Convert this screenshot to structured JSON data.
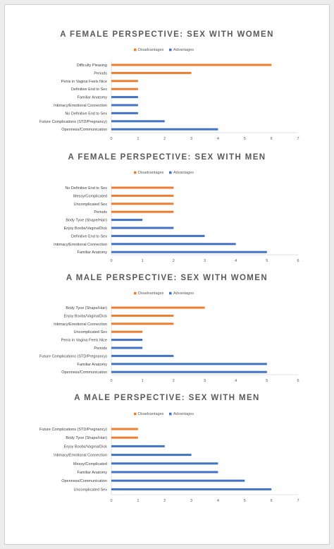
{
  "colors": {
    "disadvantages": "#ED7D31",
    "advantages": "#4472C4",
    "title": "#595959",
    "axis": "#d9d9d9"
  },
  "chart_data": [
    {
      "type": "bar",
      "orientation": "horizontal",
      "title": "A FEMALE PERSPECTIVE: SEX WITH WOMEN",
      "legend": [
        "Disadvantages",
        "Advantages"
      ],
      "legend_position": "top",
      "xlim": [
        0,
        7
      ],
      "ticks": [
        "0",
        "1",
        "2",
        "3",
        "4",
        "5",
        "6",
        "7"
      ],
      "bars": [
        {
          "label": "Difficulty Pleasing",
          "series": "Disadvantages",
          "value": 6
        },
        {
          "label": "Periods",
          "series": "Disadvantages",
          "value": 3
        },
        {
          "label": "Penis in Vagina Feels Nice",
          "series": "Disadvantages",
          "value": 1
        },
        {
          "label": "Definitive End to Sex",
          "series": "Disadvantages",
          "value": 1
        },
        {
          "label": "Familiar Anatomy",
          "series": "Advantages",
          "value": 1
        },
        {
          "label": "Intimacy/Emotional Connection",
          "series": "Advantages",
          "value": 1
        },
        {
          "label": "No Definitive End to Sex",
          "series": "Advantages",
          "value": 1
        },
        {
          "label": "Future Complications (STD/Pregnancy)",
          "series": "Advantages",
          "value": 2
        },
        {
          "label": "Openness/Communication",
          "series": "Advantages",
          "value": 4
        }
      ]
    },
    {
      "type": "bar",
      "orientation": "horizontal",
      "title": "A FEMALE PERSPECTIVE: SEX WITH MEN",
      "legend": [
        "Disadvantages",
        "Advantages"
      ],
      "legend_position": "top",
      "xlim": [
        0,
        6
      ],
      "ticks": [
        "0",
        "1",
        "2",
        "3",
        "4",
        "5",
        "6"
      ],
      "bars": [
        {
          "label": "No Definitive End to Sex",
          "series": "Disadvantages",
          "value": 2
        },
        {
          "label": "Messy/Complicated",
          "series": "Disadvantages",
          "value": 2
        },
        {
          "label": "Uncomplicated Sex",
          "series": "Disadvantages",
          "value": 2
        },
        {
          "label": "Periods",
          "series": "Disadvantages",
          "value": 2
        },
        {
          "label": "Body Tyoe (Shape/Hair)",
          "series": "Advantages",
          "value": 1
        },
        {
          "label": "Enjoy Boobs/Vagina/Dick",
          "series": "Advantages",
          "value": 2
        },
        {
          "label": "Definitive End to Sex",
          "series": "Advantages",
          "value": 3
        },
        {
          "label": "Intimacy/Emotional Connection",
          "series": "Advantages",
          "value": 4
        },
        {
          "label": "Familiar Anatomy",
          "series": "Advantages",
          "value": 5
        }
      ]
    },
    {
      "type": "bar",
      "orientation": "horizontal",
      "title": "A MALE PERSPECTIVE: SEX WITH WOMEN",
      "legend": [
        "Disadvantages",
        "Advantages"
      ],
      "legend_position": "top",
      "xlim": [
        0,
        6
      ],
      "ticks": [
        "0",
        "1",
        "2",
        "3",
        "4",
        "5",
        "6"
      ],
      "bars": [
        {
          "label": "Body Tyoe (Shape/Hair)",
          "series": "Disadvantages",
          "value": 3
        },
        {
          "label": "Enjoy Boobs/Vagina/Dick",
          "series": "Disadvantages",
          "value": 2
        },
        {
          "label": "Intimacy/Emotional Connection",
          "series": "Disadvantages",
          "value": 2
        },
        {
          "label": "Uncomplicated Sex",
          "series": "Disadvantages",
          "value": 1
        },
        {
          "label": "Penis in Vagina Feels Nice",
          "series": "Advantages",
          "value": 1
        },
        {
          "label": "Periods",
          "series": "Advantages",
          "value": 1
        },
        {
          "label": "Future Complications (STD/Pregnancy)",
          "series": "Advantages",
          "value": 2
        },
        {
          "label": "Familiar Anatomy",
          "series": "Advantages",
          "value": 5
        },
        {
          "label": "Openness/Communication",
          "series": "Advantages",
          "value": 5
        }
      ]
    },
    {
      "type": "bar",
      "orientation": "horizontal",
      "title": "A MALE PERSPECTIVE: SEX WITH MEN",
      "legend": [
        "Disadvantages",
        "Advantages"
      ],
      "legend_position": "top",
      "xlim": [
        0,
        7
      ],
      "ticks": [
        "0",
        "1",
        "2",
        "3",
        "4",
        "5",
        "6",
        "7"
      ],
      "bars": [
        {
          "label": "Future Complications (STD/Pregnancy)",
          "series": "Disadvantages",
          "value": 1
        },
        {
          "label": "Body Tyoe (Shape/Hair)",
          "series": "Disadvantages",
          "value": 1
        },
        {
          "label": "Enjoy Boobs/Vagina/Dick",
          "series": "Advantages",
          "value": 2
        },
        {
          "label": "Intimacy/Emotional Connection",
          "series": "Advantages",
          "value": 3
        },
        {
          "label": "Messy/Complicated",
          "series": "Advantages",
          "value": 4
        },
        {
          "label": "Familiar Anatomy",
          "series": "Advantages",
          "value": 4
        },
        {
          "label": "Openness/Communication",
          "series": "Advantages",
          "value": 5
        },
        {
          "label": "Uncomplicated Sex",
          "series": "Advantages",
          "value": 6
        }
      ]
    }
  ]
}
